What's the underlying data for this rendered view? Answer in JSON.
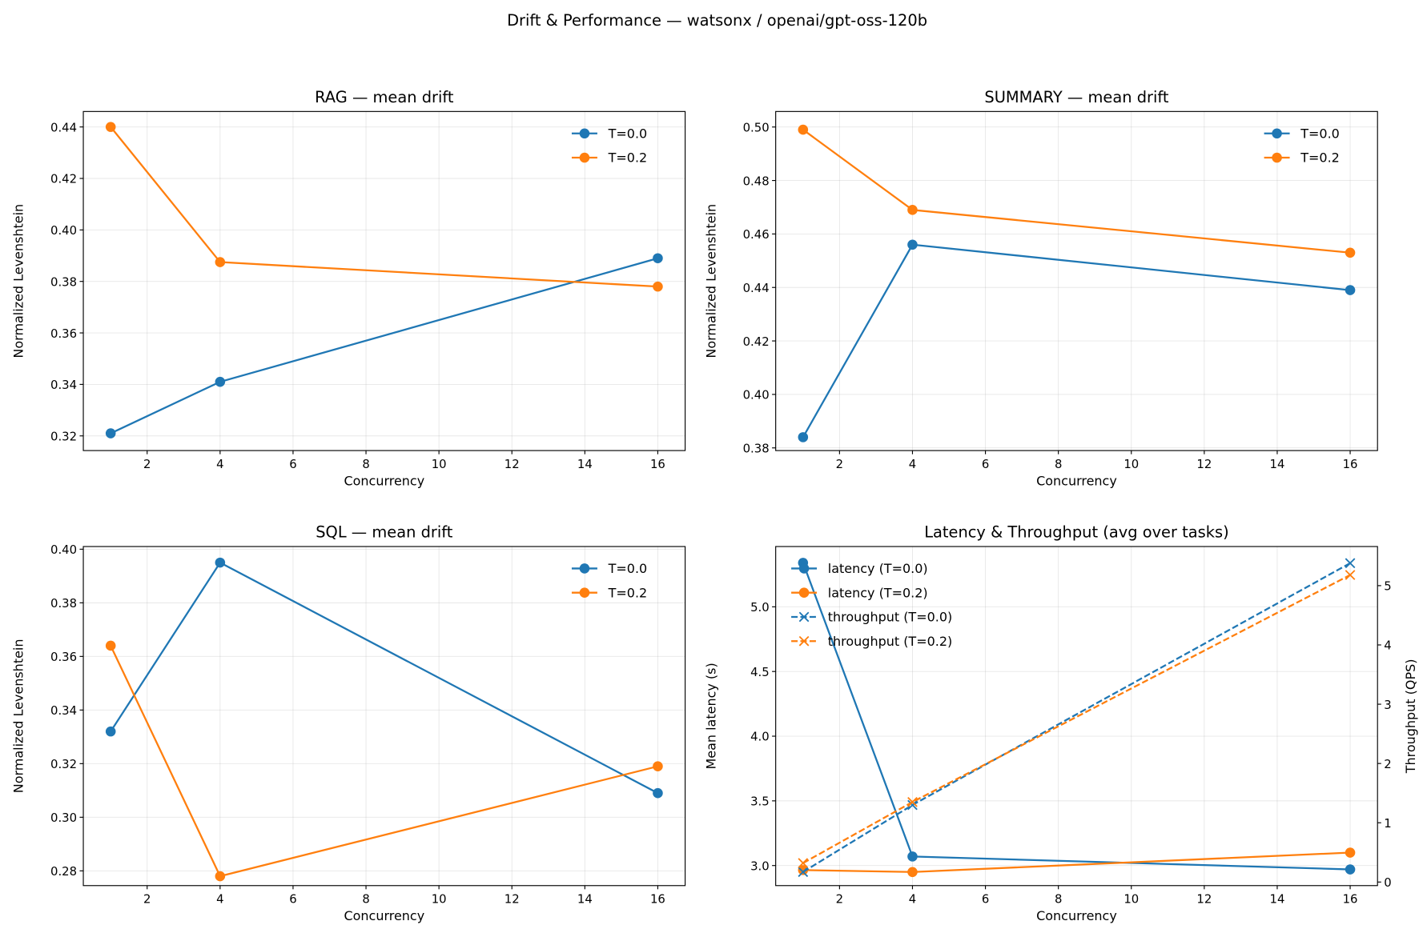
{
  "title": "Drift & Performance — watsonx / openai/gpt-oss-120b",
  "chart_data": [
    {
      "type": "line",
      "title": "RAG — mean drift",
      "xlabel": "Concurrency",
      "ylabel": "Normalized Levenshtein",
      "x": [
        1,
        4,
        16
      ],
      "xlim": [
        0.25,
        16.75
      ],
      "ylim": [
        0.3143,
        0.446
      ],
      "xticks": [
        2,
        4,
        6,
        8,
        10,
        12,
        14,
        16
      ],
      "yticks": [
        0.32,
        0.34,
        0.36,
        0.38,
        0.4,
        0.42,
        0.44
      ],
      "ytick_labels": [
        "0.32",
        "0.34",
        "0.36",
        "0.38",
        "0.40",
        "0.42",
        "0.44"
      ],
      "grid": true,
      "legend": "top-right",
      "series": [
        {
          "name": "T=0.0",
          "values": [
            0.321,
            0.341,
            0.389
          ],
          "color": "#1f77b4",
          "marker": "o",
          "style": "solid"
        },
        {
          "name": "T=0.2",
          "values": [
            0.44,
            0.3875,
            0.378
          ],
          "color": "#ff7f0e",
          "marker": "o",
          "style": "solid"
        }
      ]
    },
    {
      "type": "line",
      "title": "SUMMARY — mean drift",
      "xlabel": "Concurrency",
      "ylabel": "Normalized Levenshtein",
      "x": [
        1,
        4,
        16
      ],
      "xlim": [
        0.25,
        16.75
      ],
      "ylim": [
        0.379,
        0.5058
      ],
      "xticks": [
        2,
        4,
        6,
        8,
        10,
        12,
        14,
        16
      ],
      "yticks": [
        0.38,
        0.4,
        0.42,
        0.44,
        0.46,
        0.48,
        0.5
      ],
      "ytick_labels": [
        "0.38",
        "0.40",
        "0.42",
        "0.44",
        "0.46",
        "0.48",
        "0.50"
      ],
      "grid": true,
      "legend": "top-right",
      "series": [
        {
          "name": "T=0.0",
          "values": [
            0.384,
            0.456,
            0.439
          ],
          "color": "#1f77b4",
          "marker": "o",
          "style": "solid"
        },
        {
          "name": "T=0.2",
          "values": [
            0.499,
            0.469,
            0.453
          ],
          "color": "#ff7f0e",
          "marker": "o",
          "style": "solid"
        }
      ]
    },
    {
      "type": "line",
      "title": "SQL — mean drift",
      "xlabel": "Concurrency",
      "ylabel": "Normalized Levenshtein",
      "x": [
        1,
        4,
        16
      ],
      "xlim": [
        0.25,
        16.75
      ],
      "ylim": [
        0.2745,
        0.401
      ],
      "xticks": [
        2,
        4,
        6,
        8,
        10,
        12,
        14,
        16
      ],
      "yticks": [
        0.28,
        0.3,
        0.32,
        0.34,
        0.36,
        0.38,
        0.4
      ],
      "ytick_labels": [
        "0.28",
        "0.30",
        "0.32",
        "0.34",
        "0.36",
        "0.38",
        "0.40"
      ],
      "grid": true,
      "legend": "top-right",
      "series": [
        {
          "name": "T=0.0",
          "values": [
            0.332,
            0.395,
            0.309
          ],
          "color": "#1f77b4",
          "marker": "o",
          "style": "solid"
        },
        {
          "name": "T=0.2",
          "values": [
            0.364,
            0.278,
            0.319
          ],
          "color": "#ff7f0e",
          "marker": "o",
          "style": "solid"
        }
      ]
    },
    {
      "type": "line",
      "title": "Latency & Throughput (avg over tasks)",
      "xlabel": "Concurrency",
      "ylabel": "Mean latency (s)",
      "ylabel_right": "Throughput (QPS)",
      "x": [
        1,
        4,
        16
      ],
      "xlim": [
        0.25,
        16.75
      ],
      "ylim": [
        2.845,
        5.466
      ],
      "ylim_right": [
        -0.06,
        5.66
      ],
      "xticks": [
        2,
        4,
        6,
        8,
        10,
        12,
        14,
        16
      ],
      "yticks": [
        3.0,
        3.5,
        4.0,
        4.5,
        5.0
      ],
      "ytick_labels": [
        "3.0",
        "3.5",
        "4.0",
        "4.5",
        "5.0"
      ],
      "yticks_right": [
        0,
        1,
        2,
        3,
        4,
        5
      ],
      "grid": true,
      "legend": "top-left",
      "series": [
        {
          "name": "latency (T=0.0)",
          "values": [
            5.34,
            3.07,
            2.97
          ],
          "color": "#1f77b4",
          "marker": "o",
          "style": "solid",
          "axis": "left"
        },
        {
          "name": "latency (T=0.2)",
          "values": [
            2.965,
            2.95,
            3.1
          ],
          "color": "#ff7f0e",
          "marker": "o",
          "style": "solid",
          "axis": "left"
        },
        {
          "name": "throughput (T=0.0)",
          "values": [
            0.17,
            1.3,
            5.38
          ],
          "color": "#1f77b4",
          "marker": "x",
          "style": "dashed",
          "axis": "right"
        },
        {
          "name": "throughput (T=0.2)",
          "values": [
            0.32,
            1.35,
            5.18
          ],
          "color": "#ff7f0e",
          "marker": "x",
          "style": "dashed",
          "axis": "right"
        }
      ]
    }
  ]
}
